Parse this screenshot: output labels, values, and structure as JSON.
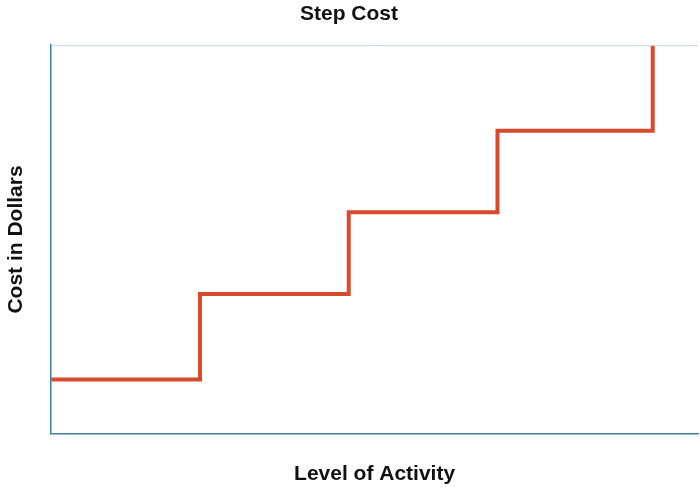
{
  "chart_data": {
    "type": "line",
    "title": "Step Cost",
    "x_label": "Level of Activity",
    "y_label": "Cost in Dollars",
    "x": [
      0,
      23,
      23,
      46,
      46,
      69,
      69,
      93,
      93
    ],
    "values": [
      14,
      14,
      36,
      36,
      57,
      57,
      78,
      78,
      100
    ],
    "color": "#d64a2e",
    "xlim": [
      0,
      100
    ],
    "ylim": [
      0,
      100
    ],
    "grid": false,
    "tick_labels": false
  }
}
